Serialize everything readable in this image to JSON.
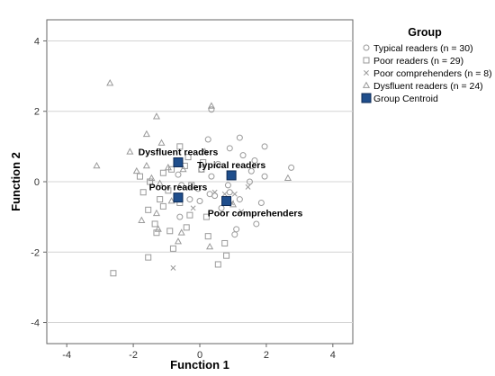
{
  "chart_data": {
    "type": "scatter",
    "xlabel": "Function 1",
    "ylabel": "Function 2",
    "xlim": [
      -4.6,
      4.6
    ],
    "ylim": [
      -4.6,
      4.6
    ],
    "xticks": [
      "-4",
      "-2",
      "0",
      "2",
      "4"
    ],
    "yticks": [
      "4",
      "2",
      "0",
      "-2",
      "-4"
    ],
    "xtick_values": [
      -4,
      -2,
      0,
      2,
      4
    ],
    "ytick_values": [
      4,
      2,
      0,
      -2,
      -4
    ],
    "grid": "horizontal",
    "legend": {
      "title": "Group",
      "placement": "right",
      "entries": [
        {
          "label": "Typical readers (n = 30)",
          "marker": "circle"
        },
        {
          "label": "Poor readers (n = 29)",
          "marker": "square"
        },
        {
          "label": "Poor comprehenders (n = 8)",
          "marker": "cross"
        },
        {
          "label": "Dysfluent readers (n = 24)",
          "marker": "triangle"
        },
        {
          "label": "Group Centroid",
          "marker": "centroid"
        }
      ]
    },
    "colors": {
      "points": "#9a9a9a",
      "centroid": "#1f4e8c",
      "centroid_border": "#0d2a55",
      "grid": "#d4d4d4",
      "axis": "#666666"
    },
    "series": [
      {
        "name": "Typical readers (n = 30)",
        "marker": "circle",
        "x": [
          0.25,
          0.35,
          1.2,
          0.9,
          1.3,
          1.65,
          1.95,
          1.55,
          2.75,
          0.55,
          0.05,
          0.85,
          1.5,
          1.95,
          0.3,
          0.9,
          1.2,
          1.85,
          -0.3,
          -0.05,
          0.45,
          1.1,
          1.7,
          -0.6,
          0.0,
          0.65,
          1.05,
          -0.65,
          -0.55,
          0.35
        ],
        "y": [
          1.2,
          2.05,
          1.25,
          0.95,
          0.75,
          0.6,
          1.0,
          0.3,
          0.4,
          0.5,
          0.35,
          -0.1,
          0.0,
          0.15,
          -0.35,
          -0.3,
          -0.5,
          -0.6,
          -0.5,
          -0.2,
          -0.4,
          -1.35,
          -1.2,
          -1.0,
          -0.55,
          -0.75,
          -1.5,
          0.2,
          -0.1,
          0.15
        ]
      },
      {
        "name": "Poor readers (n = 29)",
        "marker": "square",
        "x": [
          -2.6,
          -1.55,
          -0.8,
          -1.3,
          -1.35,
          -1.55,
          -1.2,
          -0.95,
          -0.25,
          -0.85,
          -0.45,
          -1.7,
          -1.5,
          -1.8,
          -1.1,
          -0.6,
          -0.35,
          0.1,
          0.05,
          -0.6,
          -0.3,
          -0.9,
          0.25,
          0.8,
          0.55,
          0.75,
          0.2,
          -0.4,
          -1.1
        ],
        "y": [
          -2.6,
          -2.15,
          -1.9,
          -1.45,
          -1.2,
          -0.8,
          -0.5,
          -0.25,
          -0.1,
          0.35,
          0.45,
          -0.3,
          0.0,
          0.15,
          0.25,
          1.0,
          0.7,
          0.55,
          0.35,
          -0.6,
          -0.95,
          -1.4,
          -1.55,
          -2.1,
          -2.35,
          -1.75,
          -1.0,
          -1.3,
          -0.7
        ]
      },
      {
        "name": "Poor comprehenders (n = 8)",
        "marker": "cross",
        "x": [
          -0.8,
          0.45,
          0.95,
          1.05,
          1.25,
          1.45,
          0.75,
          -0.2
        ],
        "y": [
          -2.45,
          -0.3,
          -0.6,
          -0.35,
          -0.85,
          -0.15,
          -0.35,
          -0.75
        ]
      },
      {
        "name": "Dysfluent readers (n = 24)",
        "marker": "triangle",
        "x": [
          -2.7,
          -1.3,
          0.35,
          -2.1,
          -1.6,
          -1.15,
          -3.1,
          -1.9,
          -1.6,
          -1.45,
          -1.2,
          -0.95,
          -0.5,
          0.15,
          -0.65,
          -0.85,
          -1.3,
          -0.55,
          -0.65,
          -1.75,
          -1.25,
          0.3,
          1.0,
          2.65
        ],
        "y": [
          2.8,
          1.85,
          2.15,
          0.85,
          1.35,
          1.1,
          0.45,
          0.3,
          0.45,
          0.1,
          -0.05,
          0.4,
          0.35,
          0.85,
          -0.45,
          -0.55,
          -0.9,
          -1.45,
          -1.7,
          -1.1,
          -1.35,
          -1.85,
          -0.65,
          0.1
        ]
      }
    ],
    "centroids": [
      {
        "label": "Dysfluent readers",
        "x": -0.65,
        "y": 0.55,
        "label_pos": "above"
      },
      {
        "label": "Typical readers",
        "x": 0.95,
        "y": 0.18,
        "label_pos": "above"
      },
      {
        "label": "Poor readers",
        "x": -0.65,
        "y": -0.45,
        "label_pos": "above"
      },
      {
        "label": "Poor comprehenders",
        "x": 0.8,
        "y": -0.55,
        "label_pos": "below-right"
      }
    ]
  }
}
